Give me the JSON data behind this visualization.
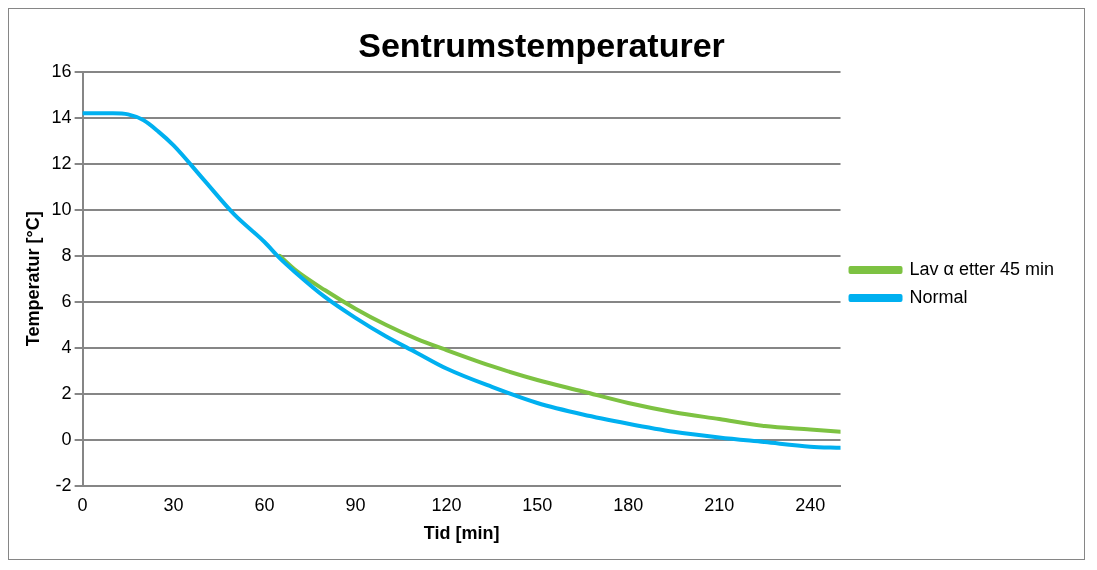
{
  "chart_data": {
    "type": "line",
    "title": "Sentrumstemperaturer",
    "xlabel": "Tid [min]",
    "ylabel": "Temperatur [°C]",
    "x": [
      0,
      10,
      15,
      20,
      25,
      30,
      40,
      50,
      60,
      65,
      70,
      80,
      90,
      100,
      110,
      120,
      135,
      150,
      165,
      180,
      195,
      210,
      225,
      240,
      250
    ],
    "series": [
      {
        "name": "Lav α etter 45 min",
        "color": "#7dc242",
        "values": [
          null,
          null,
          null,
          null,
          null,
          null,
          null,
          null,
          null,
          8.0,
          7.4,
          6.5,
          5.7,
          5.0,
          4.4,
          3.9,
          3.2,
          2.6,
          2.1,
          1.6,
          1.2,
          0.9,
          0.6,
          0.45,
          0.35
        ]
      },
      {
        "name": "Normal",
        "color": "#00b0f0",
        "values": [
          14.2,
          14.2,
          14.15,
          13.9,
          13.4,
          12.8,
          11.3,
          9.8,
          8.6,
          7.9,
          7.3,
          6.2,
          5.3,
          4.5,
          3.8,
          3.1,
          2.3,
          1.6,
          1.1,
          0.7,
          0.35,
          0.1,
          -0.1,
          -0.3,
          -0.35
        ]
      }
    ],
    "xlim": [
      0,
      250
    ],
    "xticks": [
      0,
      30,
      60,
      90,
      120,
      150,
      180,
      210,
      240
    ],
    "ylim": [
      -2,
      16
    ],
    "yticks": [
      -2,
      0,
      2,
      4,
      6,
      8,
      10,
      12,
      14,
      16
    ],
    "grid": "y",
    "legend": "right",
    "marker": "none",
    "line_style": "solid"
  }
}
